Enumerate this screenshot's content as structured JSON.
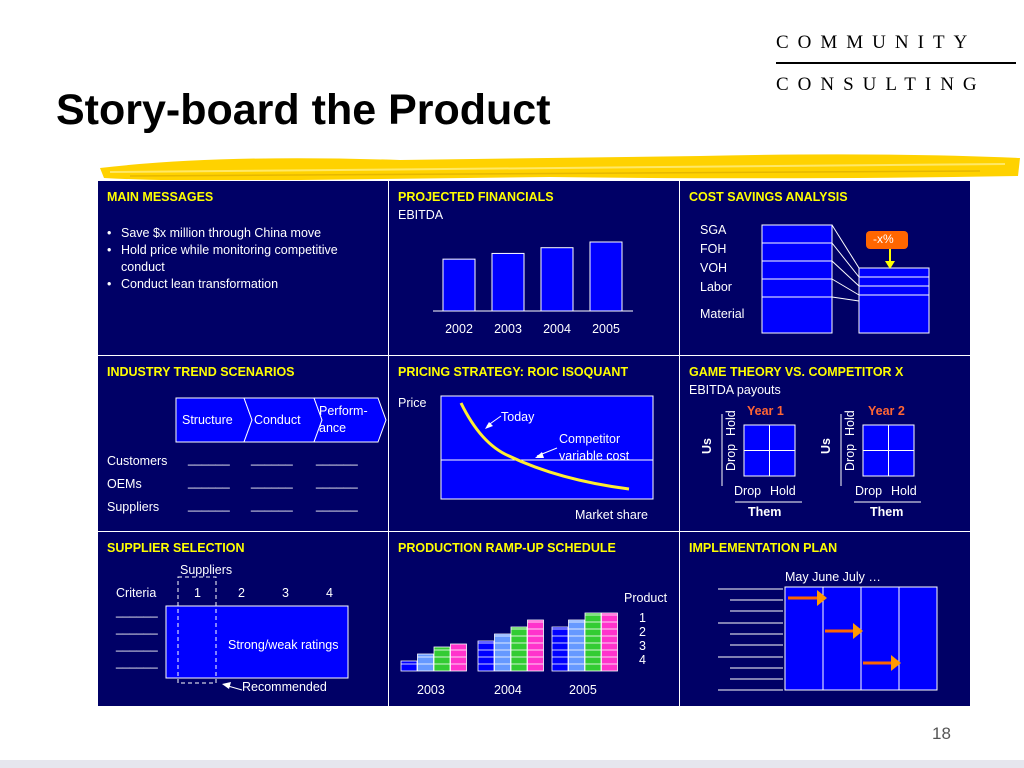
{
  "logo": {
    "line1": "COMMUNITY",
    "line2": "CONSULTING"
  },
  "title": "Story-board the Product",
  "page_number": "18",
  "colors": {
    "board": "#000066",
    "heading": "#ffff00",
    "bar": "#0000ff",
    "arrow": "#ff6600",
    "year_label": "#ff6633"
  },
  "main_messages": {
    "title": "MAIN MESSAGES",
    "bullets": [
      "Save $x million through China move",
      "Hold price while monitoring competitive conduct",
      "Conduct lean transformation"
    ]
  },
  "projected_financials": {
    "title": "PROJECTED FINANCIALS",
    "subtitle": "EBITDA",
    "chart_data": {
      "type": "bar",
      "categories": [
        "2002",
        "2003",
        "2004",
        "2005"
      ],
      "values": [
        40,
        50,
        60,
        70
      ],
      "title": "EBITDA",
      "xlabel": "",
      "ylabel": ""
    }
  },
  "cost_savings": {
    "title": "COST SAVINGS ANALYSIS",
    "labels": [
      "SGA",
      "FOH",
      "VOH",
      "Labor",
      "Material"
    ],
    "callout": "-x%"
  },
  "industry_trend": {
    "title": "INDUSTRY TREND SCENARIOS",
    "chevrons": [
      "Structure",
      "Conduct",
      "Perform-",
      "ance"
    ],
    "rows": [
      "Customers",
      "OEMs",
      "Suppliers"
    ],
    "blank": "______"
  },
  "pricing_strategy": {
    "title": "PRICING STRATEGY: ROIC ISOQUANT",
    "y_label": "Price",
    "x_label": "Market share",
    "today_label": "Today",
    "competitor_line1": "Competitor",
    "competitor_line2": "variable cost"
  },
  "game_theory": {
    "title": "GAME THEORY VS. COMPETITOR X",
    "subtitle": "EBITDA payouts",
    "year1": "Year 1",
    "year2": "Year 2",
    "us": "Us",
    "them": "Them",
    "drop": "Drop",
    "hold": "Hold"
  },
  "supplier_selection": {
    "title": "SUPPLIER SELECTION",
    "suppliers_label": "Suppliers",
    "criteria_label": "Criteria",
    "columns": [
      "1",
      "2",
      "3",
      "4"
    ],
    "ratings_label": "Strong/weak ratings",
    "recommended_label": "Recommended",
    "blank": "______"
  },
  "production_ramp": {
    "title": "PRODUCTION RAMP-UP SCHEDULE",
    "years": [
      "2003",
      "2004",
      "2005"
    ],
    "product_label": "Product",
    "products": [
      "1",
      "2",
      "3",
      "4"
    ],
    "product_colors": [
      "#0000ff",
      "#6699ff",
      "#33cc33",
      "#ff33cc"
    ]
  },
  "implementation_plan": {
    "title": "IMPLEMENTATION PLAN",
    "months": "May   June  July   …"
  }
}
